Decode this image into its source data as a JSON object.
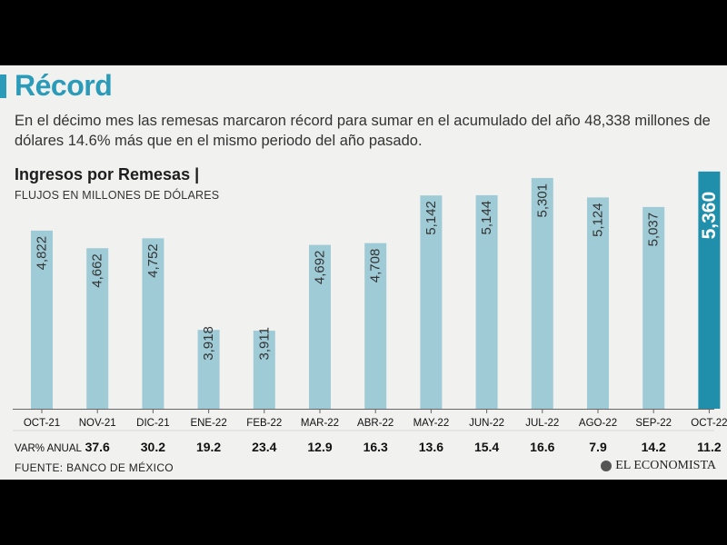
{
  "header": {
    "title": "Récord",
    "subtitle": "En el décimo mes las remesas marcaron récord para sumar en el acumulado del año 48,338 millones de dólares 14.6% más que en el mismo periodo del año pasado."
  },
  "chart_data": {
    "type": "bar",
    "title": "Ingresos por Remesas",
    "subtitle": "FLUJOS EN MILLONES DE DÓLARES",
    "categories": [
      "OCT-21",
      "NOV-21",
      "DIC-21",
      "ENE-22",
      "FEB-22",
      "MAR-22",
      "ABR-22",
      "MAY-22",
      "JUN-22",
      "JUL-22",
      "AGO-22",
      "SEP-22",
      "OCT-22"
    ],
    "values": [
      4822,
      4662,
      4752,
      3918,
      3911,
      4692,
      4708,
      5142,
      5144,
      5301,
      5124,
      5037,
      5360
    ],
    "value_labels": [
      "4,822",
      "4,662",
      "4,752",
      "3,918",
      "3,911",
      "4,692",
      "4,708",
      "5,142",
      "5,144",
      "5,301",
      "5,124",
      "5,037",
      "5,360"
    ],
    "highlight_index": 12,
    "colors": {
      "bar": "#9fcbd6",
      "highlight": "#1f8fac"
    },
    "ylim": [
      3200,
      5400
    ],
    "var_label": "VAR% ANUAL",
    "var_anual": [
      "",
      "37.6",
      "30.2",
      "19.2",
      "23.4",
      "12.9",
      "16.3",
      "13.6",
      "15.4",
      "16.6",
      "7.9",
      "14.2",
      "11.2"
    ]
  },
  "footer": {
    "source": "FUENTE: BANCO DE MÉXICO",
    "logo": "EL ECONOMISTA"
  }
}
